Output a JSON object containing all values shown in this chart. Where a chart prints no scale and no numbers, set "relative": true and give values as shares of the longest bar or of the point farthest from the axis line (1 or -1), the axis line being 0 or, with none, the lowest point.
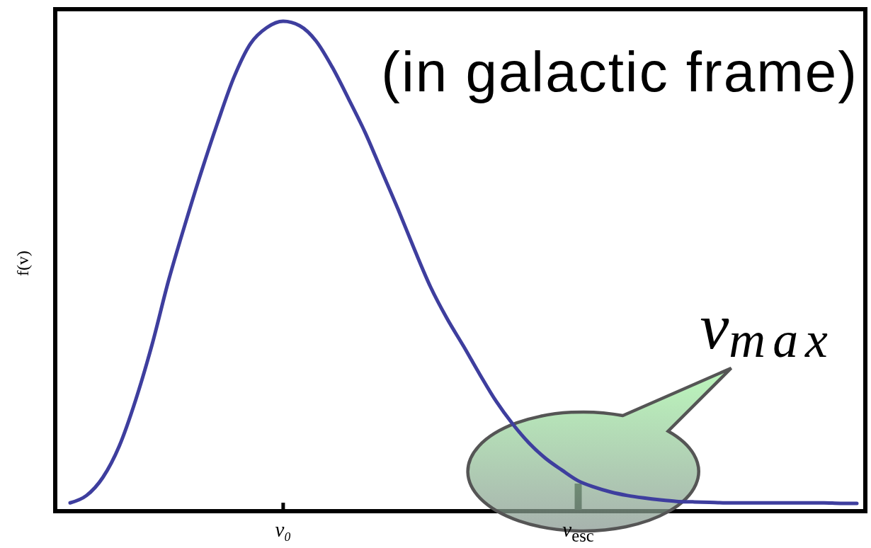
{
  "chart_data": {
    "type": "line",
    "relative": true,
    "ylabel": "f(v)",
    "annotations": [
      "(in galactic frame)",
      "v$_{max}$"
    ],
    "categories": [
      null,
      null,
      null,
      null,
      null,
      null,
      null,
      null,
      null,
      null,
      null,
      null,
      null,
      "v₀",
      null,
      null,
      null,
      null,
      null,
      null,
      null,
      null,
      null,
      null,
      null,
      null,
      null,
      null,
      null,
      null,
      null,
      "v$_{esc}$",
      null,
      null,
      null,
      null,
      null,
      null,
      null,
      null,
      null,
      null,
      null,
      null,
      null,
      null,
      null,
      null,
      null
    ],
    "color": "#3e3e9e",
    "values": [
      0.017,
      0.032,
      0.069,
      0.133,
      0.227,
      0.34,
      0.47,
      0.584,
      0.692,
      0.793,
      0.886,
      0.954,
      0.987,
      1,
      0.991,
      0.96,
      0.906,
      0.841,
      0.773,
      0.695,
      0.617,
      0.535,
      0.457,
      0.393,
      0.337,
      0.279,
      0.224,
      0.178,
      0.139,
      0.108,
      0.084,
      0.062,
      0.049,
      0.039,
      0.032,
      0.027,
      0.023,
      0.02,
      0.019,
      0.018,
      0.017,
      0.017,
      0.017,
      0.017,
      0.017,
      0.017,
      0.017,
      0.016,
      0.016
    ]
  }
}
